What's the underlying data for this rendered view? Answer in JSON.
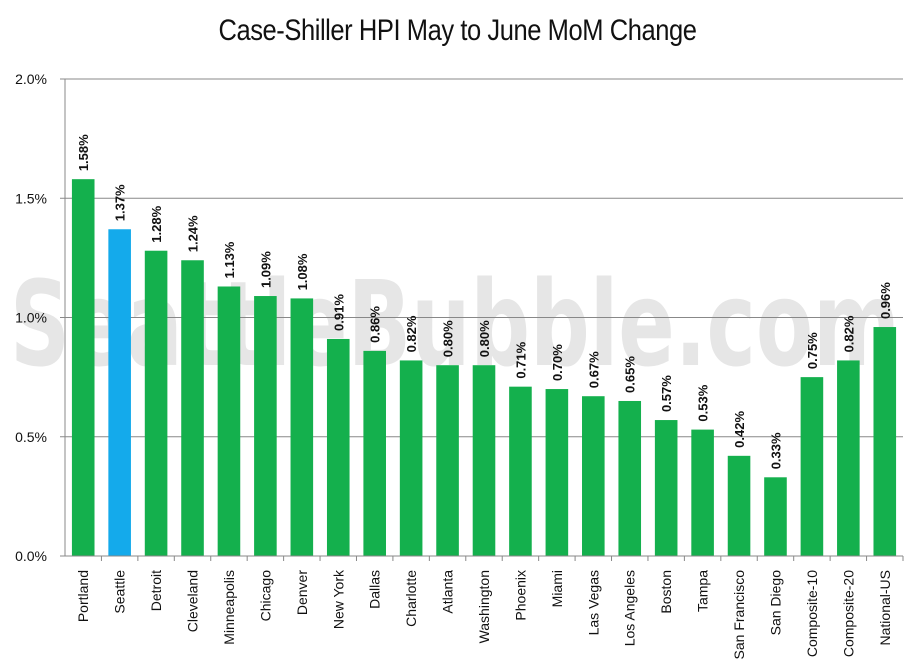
{
  "watermark": "SeattleBubble.com",
  "chart_data": {
    "type": "bar",
    "title": "Case-Shiller HPI May to June MoM Change",
    "xlabel": "",
    "ylabel": "",
    "ylim": [
      0,
      2.0
    ],
    "yticks": [
      "0.0%",
      "0.5%",
      "1.0%",
      "1.5%",
      "2.0%"
    ],
    "grid": true,
    "categories": [
      "Portland",
      "Seattle",
      "Detroit",
      "Cleveland",
      "Minneapolis",
      "Chicago",
      "Denver",
      "New York",
      "Dallas",
      "Charlotte",
      "Atlanta",
      "Washington",
      "Phoenix",
      "Miami",
      "Las Vegas",
      "Los Angeles",
      "Boston",
      "Tampa",
      "San Francisco",
      "San Diego",
      "Composite-10",
      "Composite-20",
      "National-US"
    ],
    "values": [
      1.58,
      1.37,
      1.28,
      1.24,
      1.13,
      1.09,
      1.08,
      0.91,
      0.86,
      0.82,
      0.8,
      0.8,
      0.71,
      0.7,
      0.67,
      0.65,
      0.57,
      0.53,
      0.42,
      0.33,
      0.75,
      0.82,
      0.96
    ],
    "data_labels": [
      "1.58%",
      "1.37%",
      "1.28%",
      "1.24%",
      "1.13%",
      "1.09%",
      "1.08%",
      "0.91%",
      "0.86%",
      "0.82%",
      "0.80%",
      "0.80%",
      "0.71%",
      "0.70%",
      "0.67%",
      "0.65%",
      "0.57%",
      "0.53%",
      "0.42%",
      "0.33%",
      "0.75%",
      "0.82%",
      "0.96%"
    ],
    "colors": {
      "default": "#14b04d",
      "highlight": "#14aaeb",
      "grid": "#888888"
    },
    "highlight_category": "Seattle"
  }
}
